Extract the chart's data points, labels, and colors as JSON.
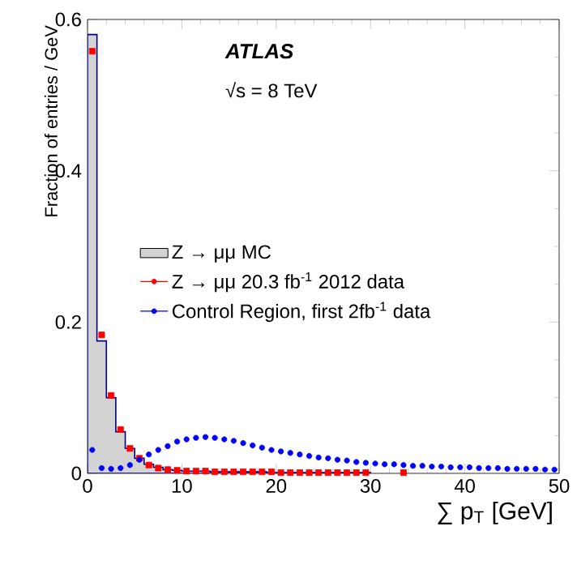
{
  "chart_data": {
    "type": "scatter",
    "xlabel": "∑ p$_{T}$ [GeV]",
    "ylabel": "Fraction of entries / GeV",
    "annotations": [
      "ATLAS",
      "√s = 8 TeV"
    ],
    "xlim": [
      0,
      50
    ],
    "ylim": [
      0,
      0.6
    ],
    "xticks": [
      0,
      10,
      20,
      30,
      40,
      50
    ],
    "yticks": [
      0,
      0.2,
      0.4,
      0.6
    ],
    "legend": "left",
    "grid": false,
    "series": [
      {
        "name": "Z → μμ MC",
        "type": "area",
        "color": "#d3d3d3",
        "x": [
          0,
          1,
          2,
          3,
          4,
          5,
          6,
          7,
          8,
          9,
          10,
          11,
          12,
          13,
          14,
          15,
          16,
          17,
          18,
          19,
          20,
          21,
          22,
          23,
          24,
          25,
          26,
          27,
          28,
          29,
          30
        ],
        "values": [
          0.58,
          0.175,
          0.1,
          0.055,
          0.033,
          0.02,
          0.012,
          0.008,
          0.005,
          0.004,
          0.003,
          0.003,
          0.003,
          0.002,
          0.002,
          0.002,
          0.002,
          0.002,
          0.002,
          0.001,
          0.001,
          0.001,
          0.001,
          0.001,
          0.001,
          0.001,
          0.001,
          0.001,
          0.001,
          0.001,
          0
        ]
      },
      {
        "name": "Z → μμ  20.3 fb$^{-1}$ 2012 data",
        "marker": "square",
        "color": "#ff0000",
        "x": [
          0.5,
          1.5,
          2.5,
          3.5,
          4.5,
          5.5,
          6.5,
          7.5,
          8.5,
          9.5,
          10.5,
          11.5,
          12.5,
          13.5,
          14.5,
          15.5,
          16.5,
          17.5,
          18.5,
          19.5,
          20.5,
          21.5,
          22.5,
          23.5,
          24.5,
          25.5,
          26.5,
          27.5,
          28.5,
          29.5,
          33.5
        ],
        "values": [
          0.558,
          0.183,
          0.103,
          0.058,
          0.033,
          0.02,
          0.011,
          0.007,
          0.005,
          0.004,
          0.003,
          0.003,
          0.003,
          0.002,
          0.002,
          0.002,
          0.002,
          0.002,
          0.002,
          0.002,
          0.001,
          0.001,
          0.001,
          0.001,
          0.001,
          0.001,
          0.001,
          0.001,
          0.001,
          0.001,
          0.001
        ]
      },
      {
        "name": "Control Region, first 2fb$^{-1}$ data",
        "marker": "circle",
        "color": "#0000ff",
        "x": [
          0.5,
          1.5,
          2.5,
          3.5,
          4.5,
          5.5,
          6.5,
          7.5,
          8.5,
          9.5,
          10.5,
          11.5,
          12.5,
          13.5,
          14.5,
          15.5,
          16.5,
          17.5,
          18.5,
          19.5,
          20.5,
          21.5,
          22.5,
          23.5,
          24.5,
          25.5,
          26.5,
          27.5,
          28.5,
          29.5,
          30.5,
          31.5,
          32.5,
          33.5,
          34.5,
          35.5,
          36.5,
          37.5,
          38.5,
          39.5,
          40.5,
          41.5,
          42.5,
          43.5,
          44.5,
          45.5,
          46.5,
          47.5,
          48.5,
          49.5
        ],
        "values": [
          0.031,
          0.007,
          0.006,
          0.007,
          0.011,
          0.018,
          0.025,
          0.031,
          0.036,
          0.042,
          0.045,
          0.047,
          0.048,
          0.047,
          0.045,
          0.043,
          0.04,
          0.037,
          0.034,
          0.031,
          0.029,
          0.027,
          0.025,
          0.023,
          0.021,
          0.02,
          0.018,
          0.017,
          0.015,
          0.014,
          0.013,
          0.012,
          0.012,
          0.011,
          0.01,
          0.01,
          0.009,
          0.009,
          0.008,
          0.008,
          0.008,
          0.007,
          0.007,
          0.007,
          0.006,
          0.006,
          0.006,
          0.006,
          0.005,
          0.005
        ]
      }
    ]
  }
}
